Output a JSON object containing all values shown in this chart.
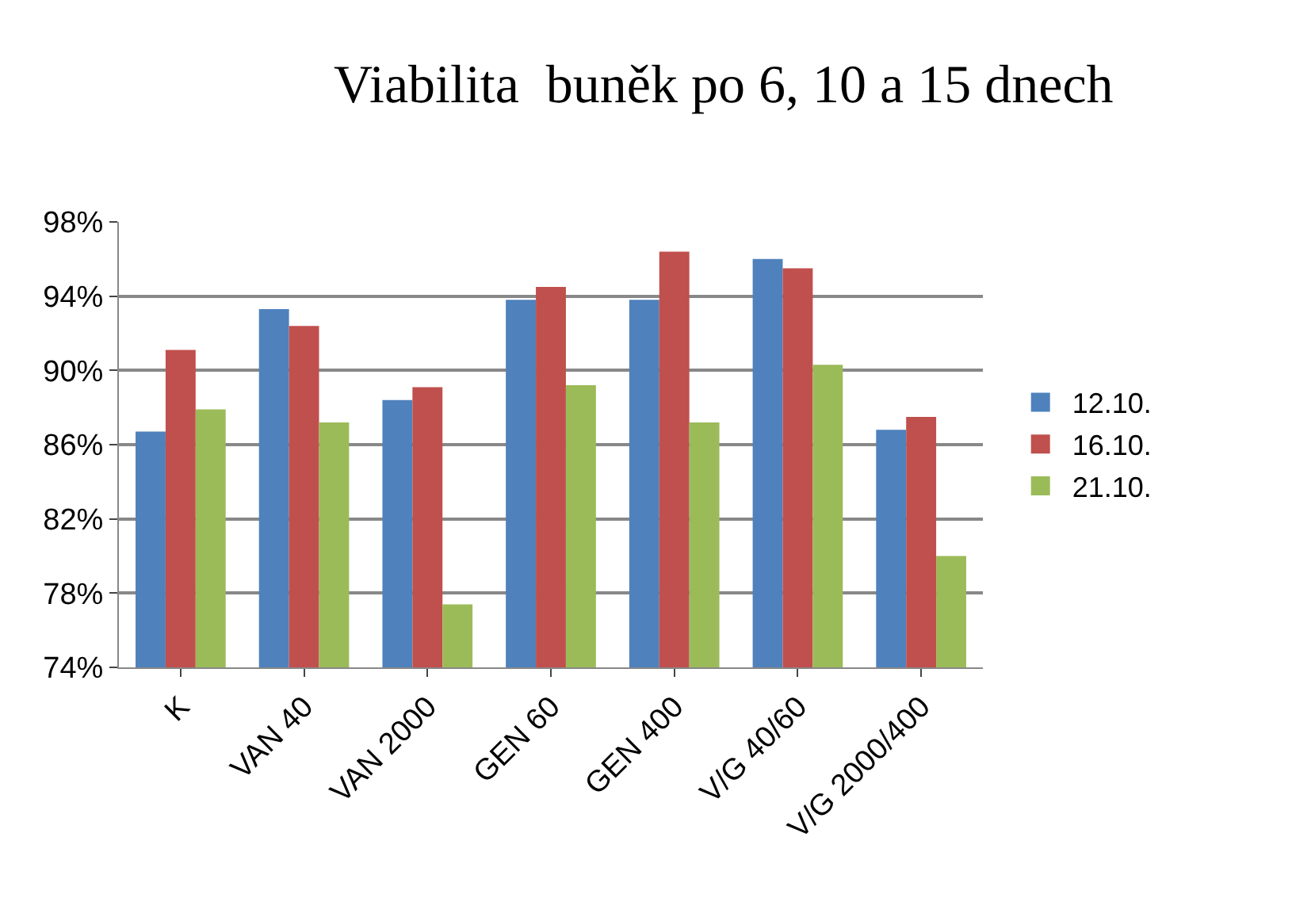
{
  "chart_data": {
    "type": "bar",
    "title": "Viabilita  buněk po 6, 10 a 15 dnech",
    "categories": [
      "K",
      "VAN 40",
      "VAN 2000",
      "GEN 60",
      "GEN 400",
      "V/G 40/60",
      "V/G 2000/400"
    ],
    "series": [
      {
        "name": "12.10.",
        "color": "#4f81bd",
        "values": [
          86.7,
          93.3,
          88.4,
          93.8,
          93.8,
          96.0,
          86.8
        ]
      },
      {
        "name": "16.10.",
        "color": "#c0504d",
        "values": [
          91.1,
          92.4,
          89.1,
          94.5,
          96.4,
          95.5,
          87.5
        ]
      },
      {
        "name": "21.10.",
        "color": "#9bbb59",
        "values": [
          87.9,
          87.2,
          77.4,
          89.2,
          87.2,
          90.3,
          80.0
        ]
      }
    ],
    "ylim": [
      74,
      98
    ],
    "yticks": [
      {
        "value": 74,
        "label": "74%"
      },
      {
        "value": 78,
        "label": "78%"
      },
      {
        "value": 82,
        "label": "82%"
      },
      {
        "value": 86,
        "label": "86%"
      },
      {
        "value": 90,
        "label": "90%"
      },
      {
        "value": 94,
        "label": "94%"
      },
      {
        "value": 98,
        "label": "98%"
      }
    ],
    "grid": "y",
    "legend": "right"
  }
}
